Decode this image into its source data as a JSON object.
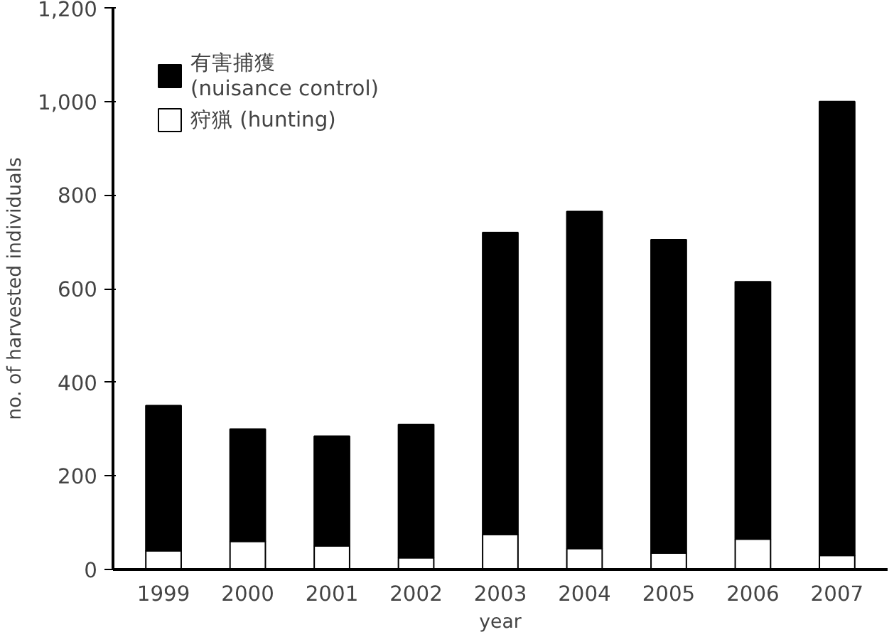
{
  "chart_data": {
    "type": "bar",
    "stacked": true,
    "xlabel": "year",
    "ylabel": "no. of harvested individuals",
    "categories": [
      "1999",
      "2000",
      "2001",
      "2002",
      "2003",
      "2004",
      "2005",
      "2006",
      "2007"
    ],
    "series": [
      {
        "name": "狩猟 (hunting)",
        "color": "#ffffff",
        "values": [
          40,
          60,
          50,
          25,
          75,
          45,
          35,
          65,
          30
        ]
      },
      {
        "name": "有害捕獲\n(nuisance control)",
        "color": "#000000",
        "values": [
          310,
          240,
          235,
          285,
          645,
          720,
          670,
          550,
          970
        ]
      }
    ],
    "ylim": [
      0,
      1200
    ],
    "yticks": [
      0,
      200,
      400,
      600,
      800,
      {
        "value": 1000,
        "label": "1,000"
      },
      {
        "value": 1200,
        "label": "1,200"
      }
    ],
    "legend": "top left",
    "grid": false
  }
}
